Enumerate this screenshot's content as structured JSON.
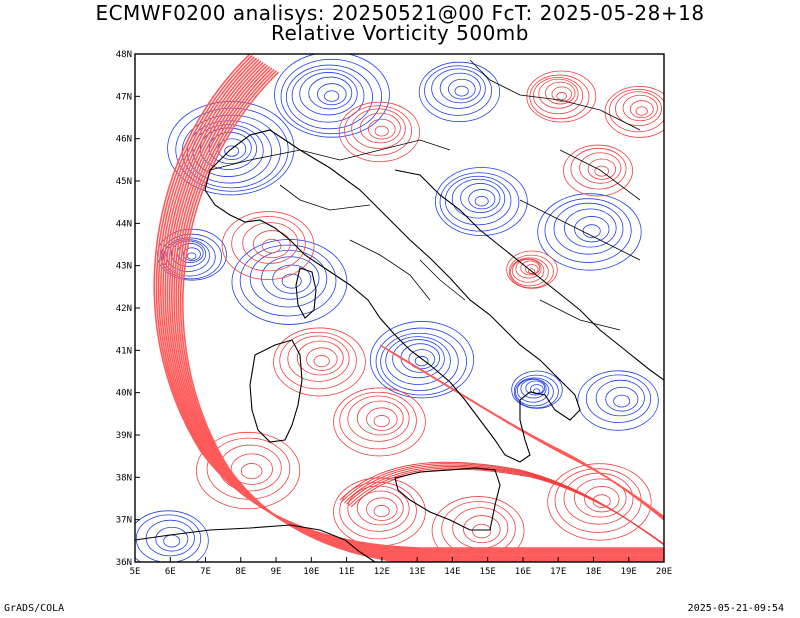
{
  "title": {
    "line1": "ECMWF0200 analisys: 20250521@00 FcT: 2025-05-28+18",
    "line2": "Relative Vorticity 500mb"
  },
  "footer": {
    "left": "GrADS/COLA",
    "right": "2025-05-21-09:54"
  },
  "map": {
    "lon_range": [
      5,
      20
    ],
    "lat_range": [
      36,
      48
    ],
    "lon_labels": [
      "5E",
      "6E",
      "7E",
      "8E",
      "9E",
      "10E",
      "11E",
      "12E",
      "13E",
      "14E",
      "15E",
      "16E",
      "17E",
      "18E",
      "19E",
      "20E"
    ],
    "lat_labels": [
      "36N",
      "37N",
      "38N",
      "39N",
      "40N",
      "41N",
      "42N",
      "43N",
      "44N",
      "45N",
      "46N",
      "47N",
      "48N"
    ],
    "colors": {
      "positive": "#f04040",
      "positive_core": "#ff5a5a",
      "negative": "#2040e8",
      "coastline": "#000000",
      "zero_contour": "#c080c0"
    }
  }
}
